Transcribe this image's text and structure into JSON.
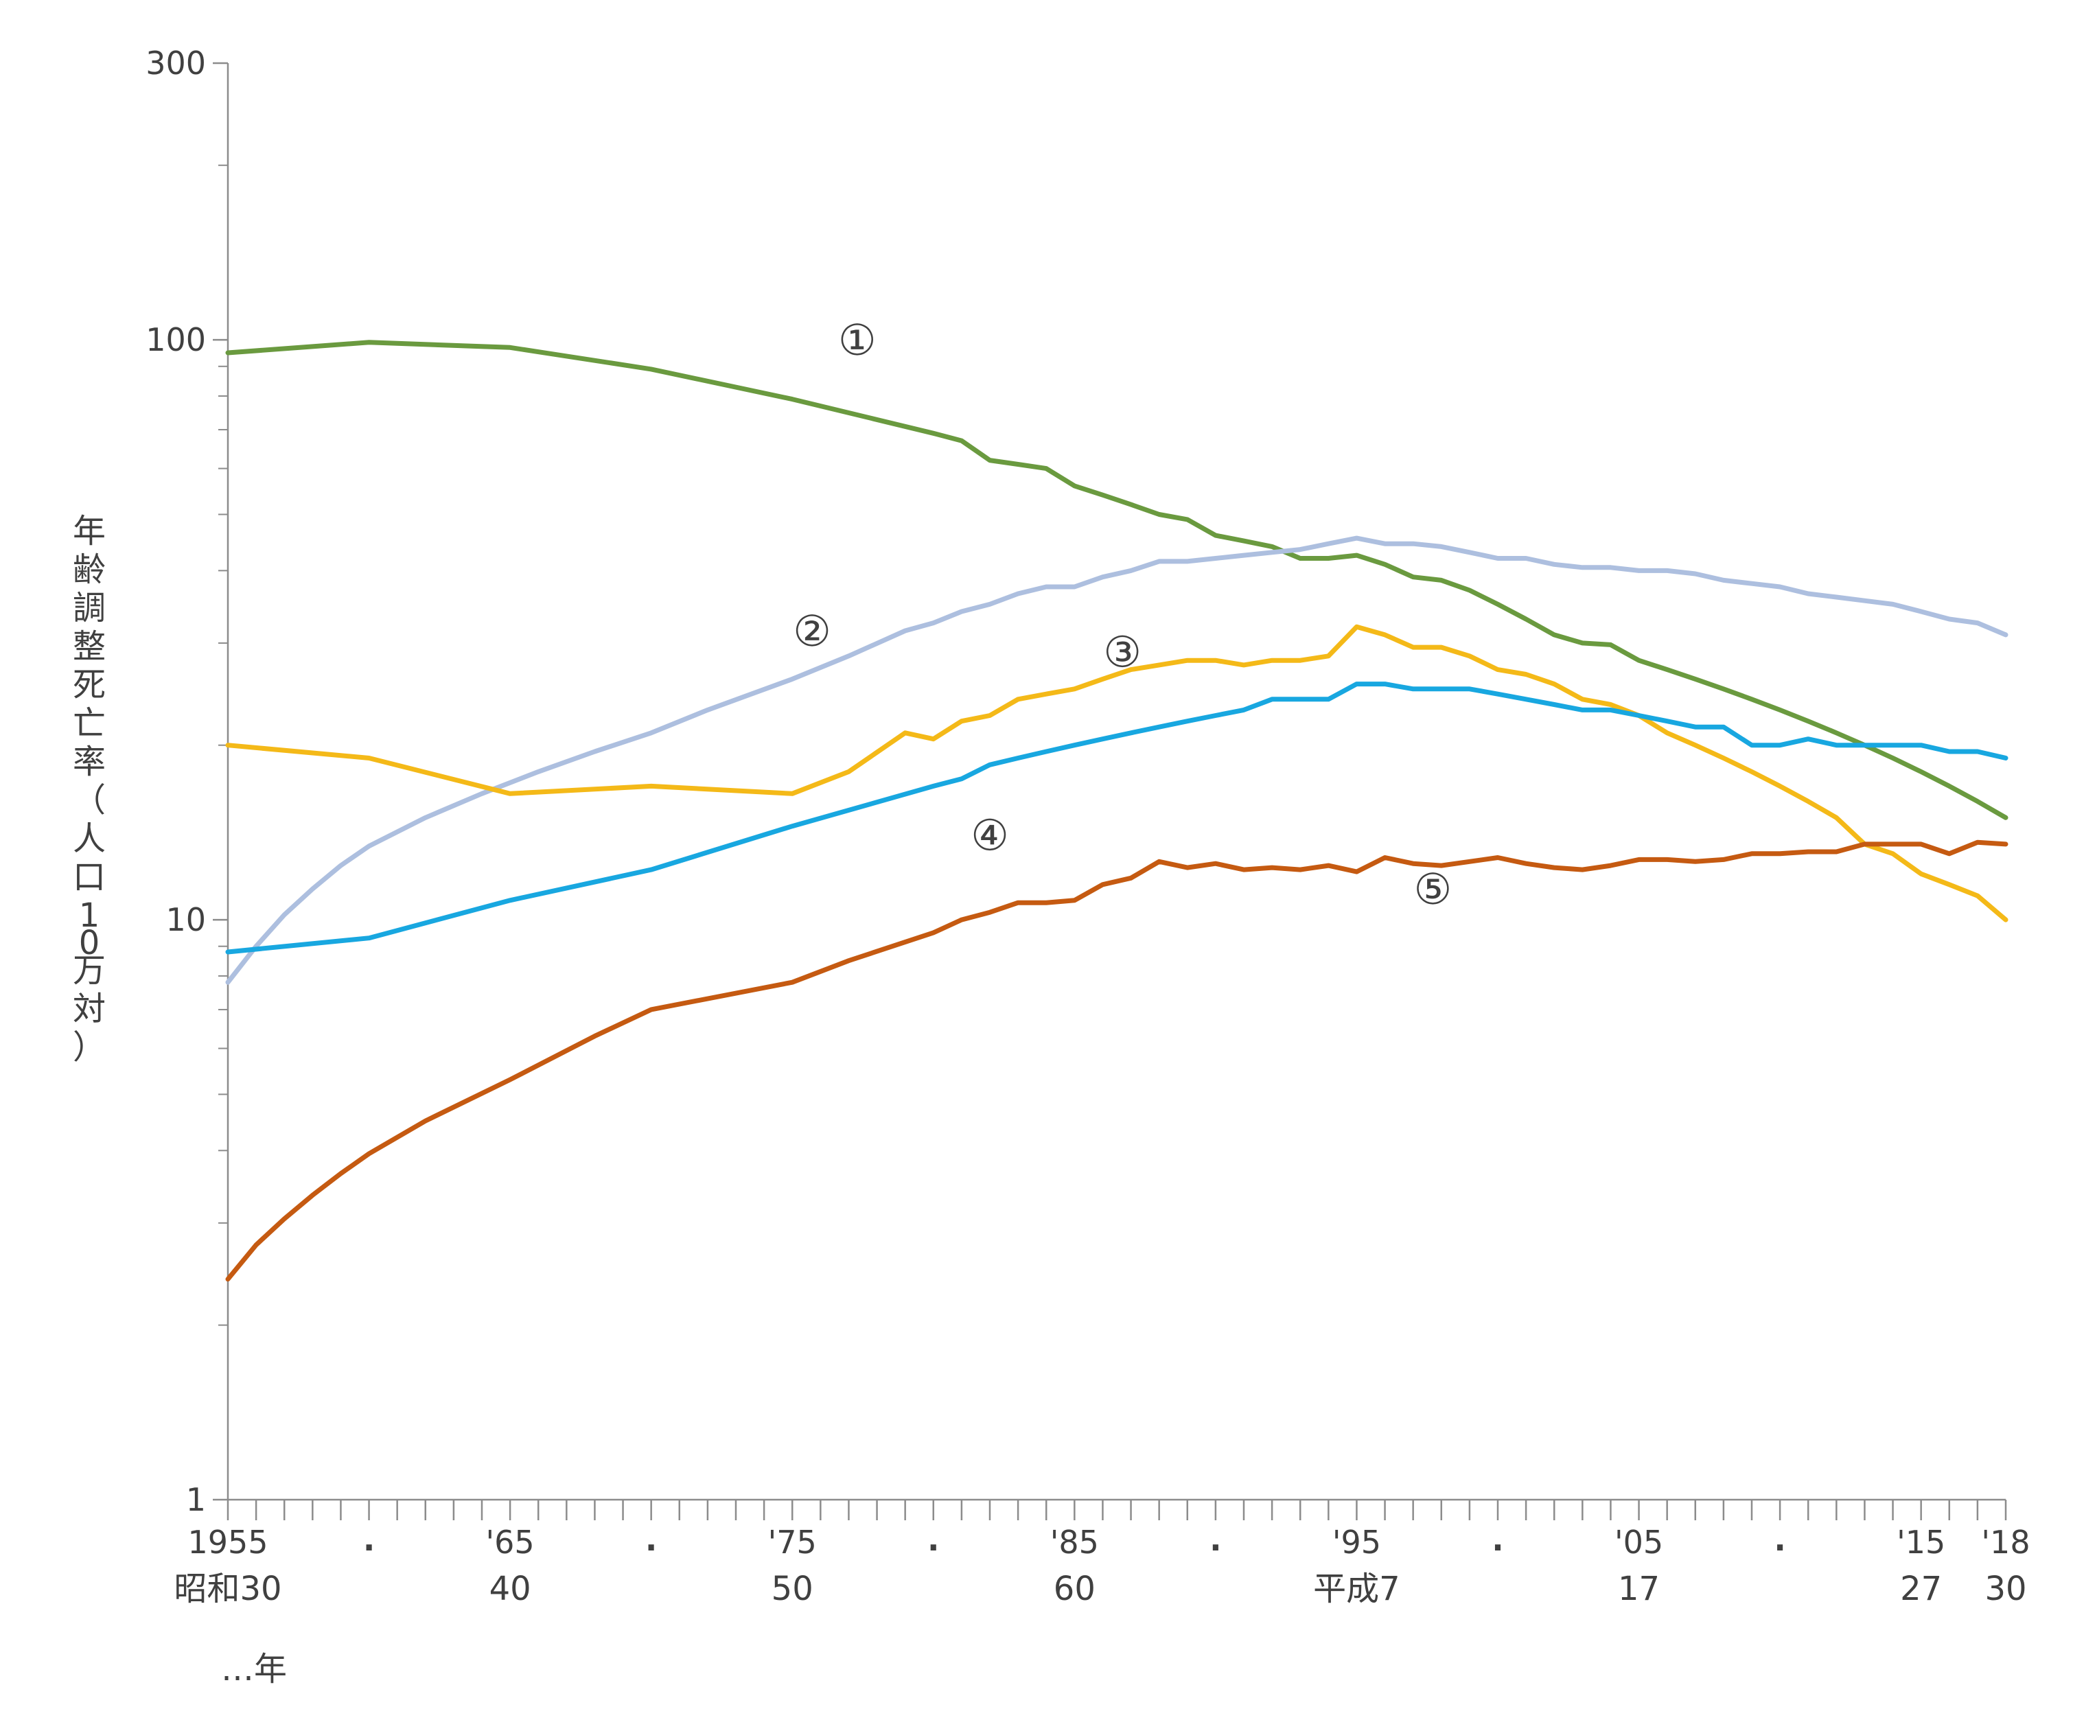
{
  "chart_data": {
    "type": "line",
    "yscale": "log",
    "ylim": [
      1,
      300
    ],
    "xlim": [
      1955,
      2018
    ],
    "ylabel": "年齢調整死亡率（人口10万対）",
    "y_ticks": [
      {
        "value": 1,
        "label": "1"
      },
      {
        "value": 10,
        "label": "10"
      },
      {
        "value": 100,
        "label": "100"
      },
      {
        "value": 300,
        "label": "300"
      }
    ],
    "x_tick_labels": [
      {
        "year": 1955,
        "top": "1955",
        "bottom": "昭和30"
      },
      {
        "year": 1960,
        "top": ".",
        "bottom": ""
      },
      {
        "year": 1965,
        "top": "'65",
        "bottom": "40"
      },
      {
        "year": 1970,
        "top": ".",
        "bottom": ""
      },
      {
        "year": 1975,
        "top": "'75",
        "bottom": "50"
      },
      {
        "year": 1980,
        "top": ".",
        "bottom": ""
      },
      {
        "year": 1985,
        "top": "'85",
        "bottom": "60"
      },
      {
        "year": 1990,
        "top": ".",
        "bottom": ""
      },
      {
        "year": 1995,
        "top": "'95",
        "bottom": "平成7"
      },
      {
        "year": 2000,
        "top": ".",
        "bottom": ""
      },
      {
        "year": 2005,
        "top": "'05",
        "bottom": "17"
      },
      {
        "year": 2010,
        "top": ".",
        "bottom": ""
      },
      {
        "year": 2015,
        "top": "'15",
        "bottom": "27"
      },
      {
        "year": 2018,
        "top": "'18",
        "bottom": "30"
      }
    ],
    "x_unit_label": "…年",
    "series": [
      {
        "name": "①",
        "color": "#6a9a3f",
        "label_at": [
          1977.3,
          100
        ],
        "points": [
          [
            1955,
            95
          ],
          [
            1960,
            99
          ],
          [
            1965,
            97
          ],
          [
            1970,
            89
          ],
          [
            1975,
            79
          ],
          [
            1980,
            69
          ],
          [
            1981,
            67
          ],
          [
            1982,
            62
          ],
          [
            1983,
            61
          ],
          [
            1984,
            60
          ],
          [
            1985,
            56
          ],
          [
            1986,
            54
          ],
          [
            1987,
            52
          ],
          [
            1988,
            50
          ],
          [
            1989,
            49
          ],
          [
            1990,
            46
          ],
          [
            1991,
            45
          ],
          [
            1992,
            44
          ],
          [
            1993,
            42
          ],
          [
            1994,
            42
          ],
          [
            1995,
            42.5
          ],
          [
            1996,
            41
          ],
          [
            1997,
            39
          ],
          [
            1998,
            38.5
          ],
          [
            1999,
            37
          ],
          [
            2000,
            35
          ],
          [
            2001,
            33
          ],
          [
            2002,
            31
          ],
          [
            2003,
            30
          ],
          [
            2004,
            29.8
          ],
          [
            2005,
            28
          ],
          [
            2006,
            27
          ],
          [
            2007,
            26
          ],
          [
            2008,
            25
          ],
          [
            2009,
            24
          ],
          [
            2010,
            23
          ],
          [
            2011,
            22
          ],
          [
            2012,
            21
          ],
          [
            2013,
            20
          ],
          [
            2014,
            19
          ],
          [
            2015,
            18
          ],
          [
            2016,
            17
          ],
          [
            2017,
            16
          ],
          [
            2018,
            15
          ]
        ]
      },
      {
        "name": "②",
        "color": "#adbfdf",
        "label_at": [
          1975.7,
          31.5
        ],
        "points": [
          [
            1955,
            7.8
          ],
          [
            1956,
            9
          ],
          [
            1957,
            10.2
          ],
          [
            1958,
            11.3
          ],
          [
            1959,
            12.4
          ],
          [
            1960,
            13.4
          ],
          [
            1962,
            15
          ],
          [
            1964,
            16.5
          ],
          [
            1966,
            18
          ],
          [
            1968,
            19.5
          ],
          [
            1970,
            21
          ],
          [
            1972,
            23
          ],
          [
            1975,
            26
          ],
          [
            1977,
            28.5
          ],
          [
            1979,
            31.5
          ],
          [
            1980,
            32.5
          ],
          [
            1981,
            34
          ],
          [
            1982,
            35
          ],
          [
            1983,
            36.5
          ],
          [
            1984,
            37.5
          ],
          [
            1985,
            37.5
          ],
          [
            1986,
            39
          ],
          [
            1987,
            40
          ],
          [
            1988,
            41.5
          ],
          [
            1989,
            41.5
          ],
          [
            1990,
            42
          ],
          [
            1991,
            42.5
          ],
          [
            1992,
            43
          ],
          [
            1993,
            43.5
          ],
          [
            1994,
            44.5
          ],
          [
            1995,
            45.5
          ],
          [
            1996,
            44.5
          ],
          [
            1997,
            44.5
          ],
          [
            1998,
            44
          ],
          [
            1999,
            43
          ],
          [
            2000,
            42
          ],
          [
            2001,
            42
          ],
          [
            2002,
            41
          ],
          [
            2003,
            40.5
          ],
          [
            2004,
            40.5
          ],
          [
            2005,
            40
          ],
          [
            2006,
            40
          ],
          [
            2007,
            39.5
          ],
          [
            2008,
            38.5
          ],
          [
            2009,
            38
          ],
          [
            2010,
            37.5
          ],
          [
            2011,
            36.5
          ],
          [
            2012,
            36
          ],
          [
            2013,
            35.5
          ],
          [
            2014,
            35
          ],
          [
            2015,
            34
          ],
          [
            2016,
            33
          ],
          [
            2017,
            32.5
          ],
          [
            2018,
            31
          ]
        ]
      },
      {
        "name": "③",
        "color": "#f4b918",
        "label_at": [
          1986.7,
          29
        ],
        "points": [
          [
            1955,
            20
          ],
          [
            1960,
            19
          ],
          [
            1965,
            16.5
          ],
          [
            1970,
            17
          ],
          [
            1975,
            16.5
          ],
          [
            1977,
            18
          ],
          [
            1979,
            21
          ],
          [
            1980,
            20.5
          ],
          [
            1981,
            22
          ],
          [
            1982,
            22.5
          ],
          [
            1983,
            24
          ],
          [
            1984,
            24.5
          ],
          [
            1985,
            25
          ],
          [
            1986,
            26
          ],
          [
            1987,
            27
          ],
          [
            1988,
            27.5
          ],
          [
            1989,
            28
          ],
          [
            1990,
            28
          ],
          [
            1991,
            27.5
          ],
          [
            1992,
            28
          ],
          [
            1993,
            28
          ],
          [
            1994,
            28.5
          ],
          [
            1995,
            32
          ],
          [
            1996,
            31
          ],
          [
            1997,
            29.5
          ],
          [
            1998,
            29.5
          ],
          [
            1999,
            28.5
          ],
          [
            2000,
            27
          ],
          [
            2001,
            26.5
          ],
          [
            2002,
            25.5
          ],
          [
            2003,
            24
          ],
          [
            2004,
            23.5
          ],
          [
            2005,
            22.5
          ],
          [
            2006,
            21
          ],
          [
            2007,
            20
          ],
          [
            2008,
            19
          ],
          [
            2009,
            18
          ],
          [
            2010,
            17
          ],
          [
            2011,
            16
          ],
          [
            2012,
            15
          ],
          [
            2013,
            13.5
          ],
          [
            2014,
            13
          ],
          [
            2015,
            12
          ],
          [
            2016,
            11.5
          ],
          [
            2017,
            11
          ],
          [
            2018,
            10
          ]
        ]
      },
      {
        "name": "④",
        "color": "#18a7e0",
        "label_at": [
          1982.0,
          14
        ],
        "points": [
          [
            1955,
            8.8
          ],
          [
            1960,
            9.3
          ],
          [
            1965,
            10.8
          ],
          [
            1970,
            12.2
          ],
          [
            1975,
            14.5
          ],
          [
            1980,
            17
          ],
          [
            1981,
            17.5
          ],
          [
            1982,
            18.5
          ],
          [
            1983,
            19
          ],
          [
            1984,
            19.5
          ],
          [
            1985,
            20
          ],
          [
            1986,
            20.5
          ],
          [
            1987,
            21
          ],
          [
            1988,
            21.5
          ],
          [
            1989,
            22
          ],
          [
            1990,
            22.5
          ],
          [
            1991,
            23
          ],
          [
            1992,
            24
          ],
          [
            1993,
            24
          ],
          [
            1994,
            24
          ],
          [
            1995,
            25.5
          ],
          [
            1996,
            25.5
          ],
          [
            1997,
            25
          ],
          [
            1998,
            25
          ],
          [
            1999,
            25
          ],
          [
            2000,
            24.5
          ],
          [
            2001,
            24
          ],
          [
            2002,
            23.5
          ],
          [
            2003,
            23
          ],
          [
            2004,
            23
          ],
          [
            2005,
            22.5
          ],
          [
            2006,
            22
          ],
          [
            2007,
            21.5
          ],
          [
            2008,
            21.5
          ],
          [
            2009,
            20
          ],
          [
            2010,
            20
          ],
          [
            2011,
            20.5
          ],
          [
            2012,
            20
          ],
          [
            2013,
            20
          ],
          [
            2014,
            20
          ],
          [
            2015,
            20
          ],
          [
            2016,
            19.5
          ],
          [
            2017,
            19.5
          ],
          [
            2018,
            19
          ]
        ]
      },
      {
        "name": "⑤",
        "color": "#c55a11",
        "label_at": [
          1997.7,
          11.3
        ],
        "points": [
          [
            1955,
            2.4
          ],
          [
            1956,
            2.75
          ],
          [
            1957,
            3.05
          ],
          [
            1958,
            3.35
          ],
          [
            1959,
            3.65
          ],
          [
            1960,
            3.95
          ],
          [
            1962,
            4.5
          ],
          [
            1965,
            5.3
          ],
          [
            1968,
            6.3
          ],
          [
            1970,
            7
          ],
          [
            1975,
            7.8
          ],
          [
            1977,
            8.5
          ],
          [
            1980,
            9.5
          ],
          [
            1981,
            10
          ],
          [
            1982,
            10.3
          ],
          [
            1983,
            10.7
          ],
          [
            1984,
            10.7
          ],
          [
            1985,
            10.8
          ],
          [
            1986,
            11.5
          ],
          [
            1987,
            11.8
          ],
          [
            1988,
            12.6
          ],
          [
            1989,
            12.3
          ],
          [
            1990,
            12.5
          ],
          [
            1991,
            12.2
          ],
          [
            1992,
            12.3
          ],
          [
            1993,
            12.2
          ],
          [
            1994,
            12.4
          ],
          [
            1995,
            12.1
          ],
          [
            1996,
            12.8
          ],
          [
            1997,
            12.5
          ],
          [
            1998,
            12.4
          ],
          [
            1999,
            12.6
          ],
          [
            2000,
            12.8
          ],
          [
            2001,
            12.5
          ],
          [
            2002,
            12.3
          ],
          [
            2003,
            12.2
          ],
          [
            2004,
            12.4
          ],
          [
            2005,
            12.7
          ],
          [
            2006,
            12.7
          ],
          [
            2007,
            12.6
          ],
          [
            2008,
            12.7
          ],
          [
            2009,
            13
          ],
          [
            2010,
            13
          ],
          [
            2011,
            13.1
          ],
          [
            2012,
            13.1
          ],
          [
            2013,
            13.5
          ],
          [
            2014,
            13.5
          ],
          [
            2015,
            13.5
          ],
          [
            2016,
            13
          ],
          [
            2017,
            13.6
          ],
          [
            2018,
            13.5
          ]
        ]
      }
    ]
  }
}
